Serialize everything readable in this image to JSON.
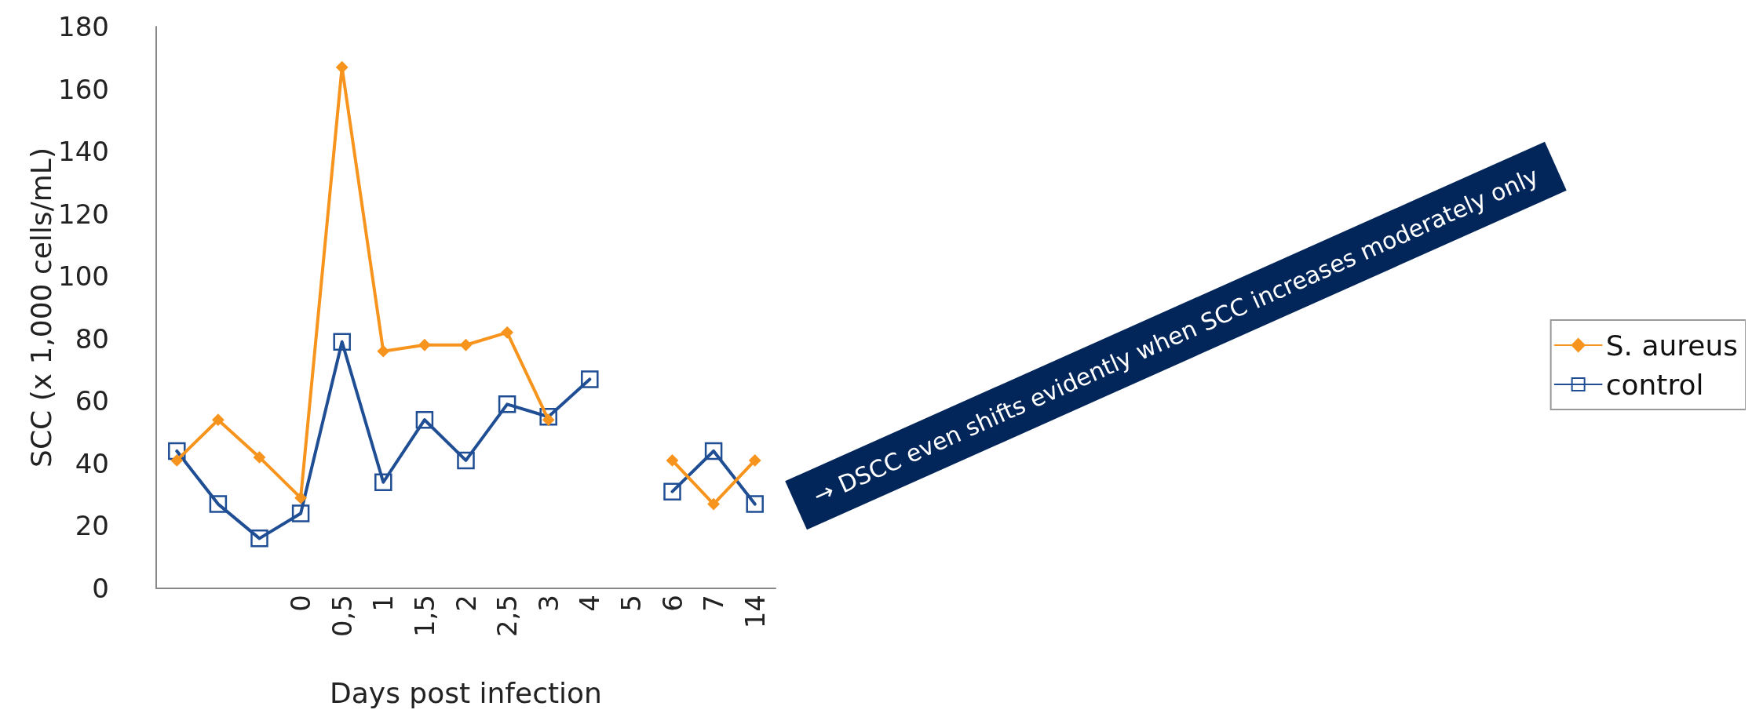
{
  "chart_data": {
    "type": "line",
    "xlabel": "Days post infection",
    "ylabel": "SCC (x 1,000 cells/mL)",
    "categories": [
      null,
      null,
      null,
      "0",
      "0,5",
      "1",
      "1,5",
      "2",
      "2,5",
      "3",
      "4",
      "5",
      "6",
      "7",
      "14"
    ],
    "series": [
      {
        "name": "S. aureus",
        "color": "#f7941d",
        "marker": "diamond",
        "values": [
          41,
          54,
          42,
          29,
          167,
          76,
          78,
          78,
          82,
          54,
          null,
          null,
          41,
          27,
          41
        ]
      },
      {
        "name": "control",
        "color": "#1f4e94",
        "marker": "square",
        "values": [
          44,
          27,
          16,
          24,
          79,
          34,
          54,
          41,
          59,
          55,
          67,
          null,
          31,
          44,
          27
        ]
      }
    ],
    "ylim": [
      0,
      180
    ],
    "yticks": [
      0,
      20,
      40,
      60,
      80,
      100,
      120,
      140,
      160,
      180
    ],
    "grid": false,
    "legend": "right",
    "line_style": "solid",
    "annotations": [
      "→ DSCC even shifts evidently when SCC increases moderately only"
    ]
  }
}
